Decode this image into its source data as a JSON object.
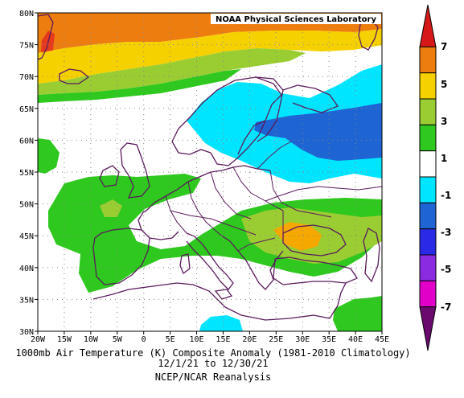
{
  "credit": "NOAA Physical Sciences Laboratory",
  "caption": {
    "line1": "1000mb Air Temperature (K) Composite Anomaly (1981-2010 Climatology)",
    "line2": "12/1/21 to 12/30/21",
    "line3": "NCEP/NCAR Reanalysis"
  },
  "map": {
    "lon_labels": [
      "20W",
      "15W",
      "10W",
      "5W",
      "0",
      "5E",
      "10E",
      "15E",
      "20E",
      "25E",
      "30E",
      "35E",
      "40E",
      "45E"
    ],
    "lat_labels": [
      "80N",
      "75N",
      "70N",
      "65N",
      "60N",
      "55N",
      "50N",
      "45N",
      "40N",
      "35N",
      "30N"
    ],
    "lon_range": [
      -20,
      45
    ],
    "lat_range": [
      30,
      80
    ],
    "grid": "dotted"
  },
  "colorbar": {
    "labels": [
      "7",
      "5",
      "3",
      "1",
      "-1",
      "-3",
      "-5",
      "-7"
    ],
    "colors": [
      "#d61818",
      "#ee7d10",
      "#f5d100",
      "#9acd32",
      "#2ec81e",
      "#ffffff",
      "#00e5ff",
      "#1e64d2",
      "#2a2ae6",
      "#8a2be2",
      "#e000c8",
      "#6a0a6e"
    ]
  },
  "colors": {
    "warm3": "#ee7d10",
    "warm2": "#f5a800",
    "warm1": "#f5d100",
    "warm0": "#9acd32",
    "pos1": "#2ec81e",
    "neg1": "#00e5ff",
    "neg2": "#1e64d2",
    "red": "#e53a1e",
    "coast": "#5a1a5c"
  }
}
